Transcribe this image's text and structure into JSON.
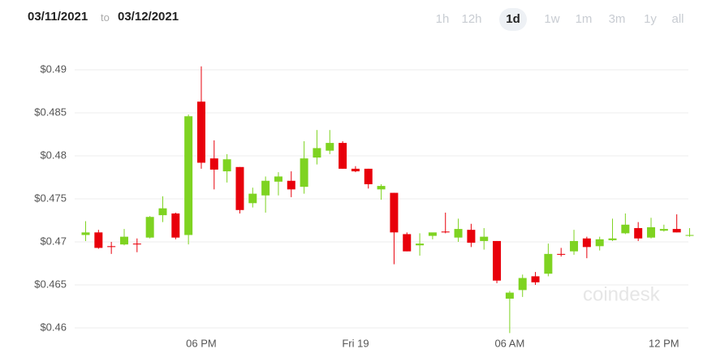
{
  "header": {
    "from": "03/11/2021",
    "separator": "to",
    "to": "03/12/2021",
    "ranges": [
      "1h",
      "12h",
      "1d",
      "1w",
      "1m",
      "3m",
      "1y",
      "all"
    ],
    "selected_range": 2
  },
  "chart_data": {
    "type": "candlestick",
    "watermark": "coindesk",
    "categories": [
      null,
      null,
      null,
      null,
      null,
      null,
      null,
      null,
      null,
      "06 PM",
      null,
      null,
      null,
      null,
      null,
      null,
      null,
      null,
      null,
      null,
      null,
      "Fri 19",
      null,
      null,
      null,
      null,
      null,
      null,
      null,
      null,
      null,
      null,
      null,
      "06 AM",
      null,
      null,
      null,
      null,
      null,
      null,
      null,
      null,
      null,
      null,
      null,
      "12 PM",
      null,
      null
    ],
    "open": [
      0.4708,
      0.4711,
      0.4695,
      0.4697,
      0.4698,
      0.4705,
      0.4731,
      0.4733,
      0.4708,
      0.4863,
      0.4797,
      0.4782,
      0.4787,
      0.4745,
      0.4754,
      0.477,
      0.4771,
      0.4764,
      0.4798,
      0.4806,
      0.4815,
      0.4785,
      0.4785,
      0.4761,
      0.4757,
      0.4709,
      0.4696,
      0.4707,
      0.4712,
      0.4705,
      0.4714,
      0.4701,
      0.4701,
      0.4634,
      0.4644,
      0.466,
      0.4663,
      0.4686,
      0.4689,
      0.4704,
      0.4695,
      0.4702,
      0.471,
      0.4716,
      0.4705,
      0.4713,
      0.4715,
      0.4707
    ],
    "high": [
      0.4724,
      0.4714,
      0.47,
      0.4715,
      0.4704,
      0.473,
      0.4753,
      0.4734,
      0.4848,
      0.4904,
      0.4818,
      0.4802,
      0.4787,
      0.4763,
      0.4776,
      0.4781,
      0.4782,
      0.4817,
      0.483,
      0.483,
      0.4817,
      0.4788,
      0.4785,
      0.4767,
      0.4757,
      0.4711,
      0.471,
      0.471,
      0.4734,
      0.4727,
      0.4721,
      0.4716,
      0.4701,
      0.4643,
      0.4662,
      0.4665,
      0.4698,
      0.4693,
      0.4714,
      0.4706,
      0.4706,
      0.4727,
      0.4733,
      0.4723,
      0.4728,
      0.472,
      0.4732,
      0.4716
    ],
    "low": [
      0.4701,
      0.4692,
      0.4686,
      0.4696,
      0.4688,
      0.4704,
      0.4723,
      0.4703,
      0.4697,
      0.4785,
      0.4761,
      0.4769,
      0.4733,
      0.474,
      0.4734,
      0.4754,
      0.4752,
      0.4756,
      0.479,
      0.4802,
      0.4785,
      0.4781,
      0.4762,
      0.4749,
      0.4674,
      0.4689,
      0.4684,
      0.4703,
      0.471,
      0.47,
      0.4694,
      0.4691,
      0.4652,
      0.4594,
      0.4636,
      0.465,
      0.466,
      0.4683,
      0.4685,
      0.4681,
      0.469,
      0.4701,
      0.4709,
      0.4701,
      0.4704,
      0.4712,
      0.4711,
      0.4706
    ],
    "close": [
      0.4711,
      0.4693,
      0.4694,
      0.4706,
      0.4697,
      0.4729,
      0.4739,
      0.4705,
      0.4846,
      0.4792,
      0.4784,
      0.4796,
      0.4737,
      0.4756,
      0.4771,
      0.4776,
      0.4761,
      0.4797,
      0.4809,
      0.4815,
      0.4785,
      0.4782,
      0.4767,
      0.4765,
      0.4711,
      0.4689,
      0.4698,
      0.4711,
      0.4711,
      0.4715,
      0.4699,
      0.4706,
      0.4655,
      0.4641,
      0.4658,
      0.4653,
      0.4686,
      0.4685,
      0.4701,
      0.4694,
      0.4703,
      0.4704,
      0.472,
      0.4704,
      0.4717,
      0.4715,
      0.4711,
      0.4708
    ],
    "up_color": "#7ed321",
    "down_color": "#e8000b",
    "ylim": [
      0.4575,
      0.4925
    ],
    "yticks": [
      {
        "value": 0.46,
        "label": "$0.46"
      },
      {
        "value": 0.465,
        "label": "$0.465"
      },
      {
        "value": 0.47,
        "label": "$0.47"
      },
      {
        "value": 0.475,
        "label": "$0.475"
      },
      {
        "value": 0.48,
        "label": "$0.48"
      },
      {
        "value": 0.485,
        "label": "$0.485"
      },
      {
        "value": 0.49,
        "label": "$0.49"
      }
    ],
    "grid": true
  }
}
